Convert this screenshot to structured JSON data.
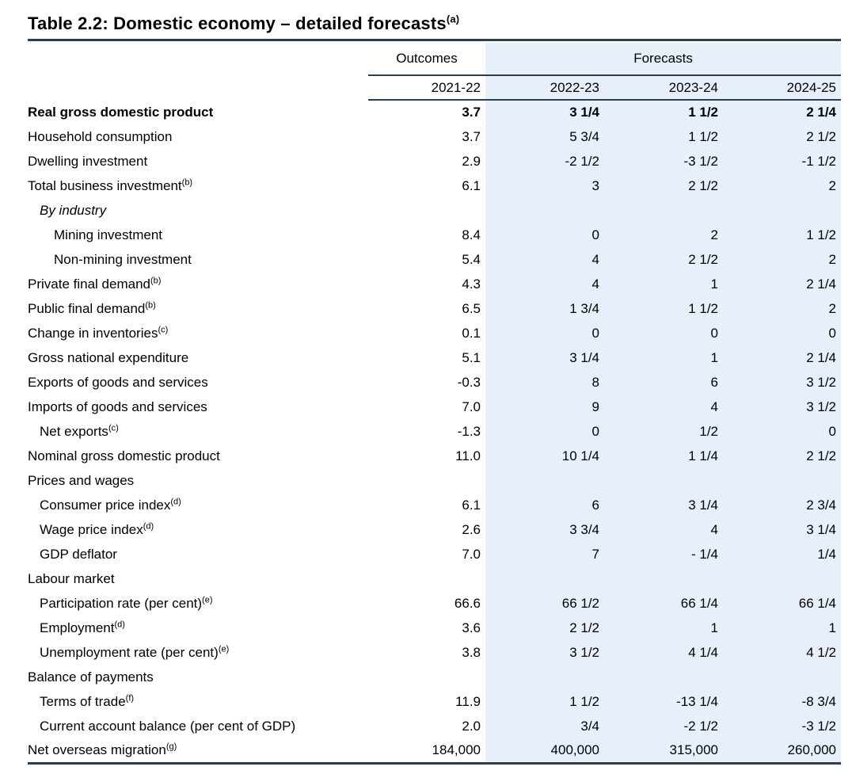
{
  "title": {
    "text": "Table 2.2: Domestic economy – detailed forecasts",
    "superscript": "(a)"
  },
  "header": {
    "outcomes_label": "Outcomes",
    "forecasts_label": "Forecasts",
    "years": [
      "2021-22",
      "2022-23",
      "2023-24",
      "2024-25"
    ]
  },
  "colors": {
    "forecast_band_bg": "#E7EFFA",
    "rule": "#2A3E54",
    "text": "#000000"
  },
  "rows": [
    {
      "label": "Real gross domestic product",
      "sup": "",
      "indent": 0,
      "bold": true,
      "italic": false,
      "values": [
        "3.7",
        "3 1/4",
        "1 1/2",
        "2 1/4"
      ]
    },
    {
      "label": "Household consumption",
      "sup": "",
      "indent": 0,
      "bold": false,
      "italic": false,
      "values": [
        "3.7",
        "5 3/4",
        "1 1/2",
        "2 1/2"
      ]
    },
    {
      "label": "Dwelling investment",
      "sup": "",
      "indent": 0,
      "bold": false,
      "italic": false,
      "values": [
        "2.9",
        "-2 1/2",
        "-3 1/2",
        "-1 1/2"
      ]
    },
    {
      "label": "Total business investment",
      "sup": "(b)",
      "indent": 0,
      "bold": false,
      "italic": false,
      "values": [
        "6.1",
        "3",
        "2 1/2",
        "2"
      ]
    },
    {
      "label": "By industry",
      "sup": "",
      "indent": 1,
      "bold": false,
      "italic": true,
      "values": [
        "",
        "",
        "",
        ""
      ]
    },
    {
      "label": "Mining investment",
      "sup": "",
      "indent": 2,
      "bold": false,
      "italic": false,
      "values": [
        "8.4",
        "0",
        "2",
        "1 1/2"
      ]
    },
    {
      "label": "Non-mining investment",
      "sup": "",
      "indent": 2,
      "bold": false,
      "italic": false,
      "values": [
        "5.4",
        "4",
        "2 1/2",
        "2"
      ]
    },
    {
      "label": "Private final demand",
      "sup": "(b)",
      "indent": 0,
      "bold": false,
      "italic": false,
      "values": [
        "4.3",
        "4",
        "1",
        "2 1/4"
      ]
    },
    {
      "label": "Public final demand",
      "sup": "(b)",
      "indent": 0,
      "bold": false,
      "italic": false,
      "values": [
        "6.5",
        "1 3/4",
        "1 1/2",
        "2"
      ]
    },
    {
      "label": "Change in inventories",
      "sup": "(c)",
      "indent": 0,
      "bold": false,
      "italic": false,
      "values": [
        "0.1",
        "0",
        "0",
        "0"
      ]
    },
    {
      "label": "Gross national expenditure",
      "sup": "",
      "indent": 0,
      "bold": false,
      "italic": false,
      "values": [
        "5.1",
        "3 1/4",
        "1",
        "2 1/4"
      ]
    },
    {
      "label": "Exports of goods and services",
      "sup": "",
      "indent": 0,
      "bold": false,
      "italic": false,
      "values": [
        "-0.3",
        "8",
        "6",
        "3 1/2"
      ]
    },
    {
      "label": "Imports of goods and services",
      "sup": "",
      "indent": 0,
      "bold": false,
      "italic": false,
      "values": [
        "7.0",
        "9",
        "4",
        "3 1/2"
      ]
    },
    {
      "label": "Net exports",
      "sup": "(c)",
      "indent": 1,
      "bold": false,
      "italic": false,
      "values": [
        "-1.3",
        "0",
        "1/2",
        "0"
      ]
    },
    {
      "label": "Nominal gross domestic product",
      "sup": "",
      "indent": 0,
      "bold": false,
      "italic": false,
      "values": [
        "11.0",
        "10 1/4",
        "1 1/4",
        "2 1/2"
      ]
    },
    {
      "label": "Prices and wages",
      "sup": "",
      "indent": 0,
      "bold": false,
      "italic": false,
      "values": [
        "",
        "",
        "",
        ""
      ]
    },
    {
      "label": "Consumer price index",
      "sup": "(d)",
      "indent": 1,
      "bold": false,
      "italic": false,
      "values": [
        "6.1",
        "6",
        "3 1/4",
        "2 3/4"
      ]
    },
    {
      "label": "Wage price index",
      "sup": "(d)",
      "indent": 1,
      "bold": false,
      "italic": false,
      "values": [
        "2.6",
        "3 3/4",
        "4",
        "3 1/4"
      ]
    },
    {
      "label": "GDP deflator",
      "sup": "",
      "indent": 1,
      "bold": false,
      "italic": false,
      "values": [
        "7.0",
        "7",
        "- 1/4",
        "1/4"
      ]
    },
    {
      "label": "Labour market",
      "sup": "",
      "indent": 0,
      "bold": false,
      "italic": false,
      "values": [
        "",
        "",
        "",
        ""
      ]
    },
    {
      "label": "Participation rate (per cent)",
      "sup": "(e)",
      "indent": 1,
      "bold": false,
      "italic": false,
      "values": [
        "66.6",
        "66 1/2",
        "66 1/4",
        "66 1/4"
      ]
    },
    {
      "label": "Employment",
      "sup": "(d)",
      "indent": 1,
      "bold": false,
      "italic": false,
      "values": [
        "3.6",
        "2 1/2",
        "1",
        "1"
      ]
    },
    {
      "label": "Unemployment rate (per cent)",
      "sup": "(e)",
      "indent": 1,
      "bold": false,
      "italic": false,
      "values": [
        "3.8",
        "3 1/2",
        "4 1/4",
        "4 1/2"
      ]
    },
    {
      "label": "Balance of payments",
      "sup": "",
      "indent": 0,
      "bold": false,
      "italic": false,
      "values": [
        "",
        "",
        "",
        ""
      ]
    },
    {
      "label": "Terms of trade",
      "sup": "(f)",
      "indent": 1,
      "bold": false,
      "italic": false,
      "values": [
        "11.9",
        "1 1/2",
        "-13 1/4",
        "-8 3/4"
      ]
    },
    {
      "label": "Current account balance (per cent of GDP)",
      "sup": "",
      "indent": 1,
      "bold": false,
      "italic": false,
      "values": [
        "2.0",
        "3/4",
        "-2 1/2",
        "-3 1/2"
      ]
    },
    {
      "label": "Net overseas migration",
      "sup": "(g)",
      "indent": 0,
      "bold": false,
      "italic": false,
      "values": [
        "184,000",
        "400,000",
        "315,000",
        "260,000"
      ]
    }
  ]
}
